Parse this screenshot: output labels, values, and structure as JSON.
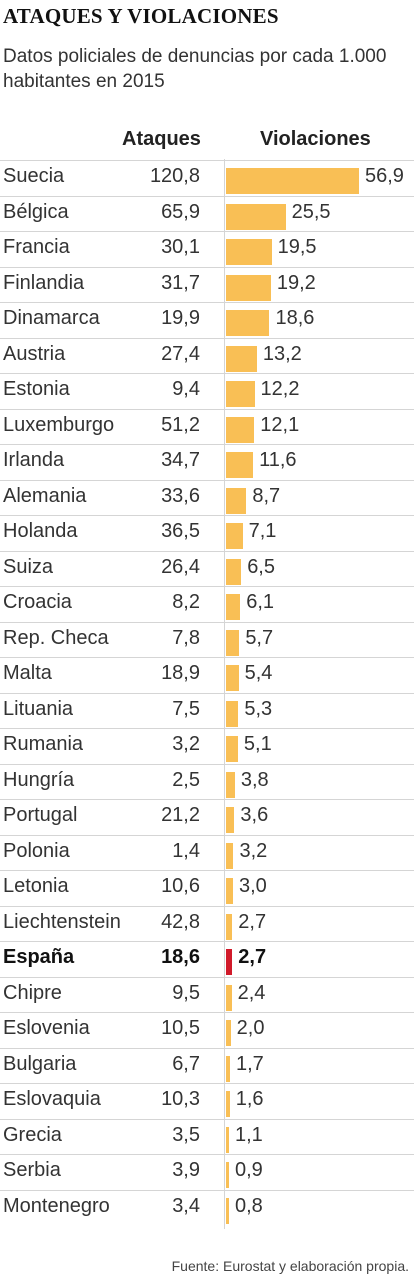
{
  "title": "ATAQUES Y VIOLACIONES",
  "subtitle": "Datos policiales de denuncias por cada 1.000 habitantes en 2015",
  "source": "Fuente: Eurostat  y elaboración propia.",
  "colors": {
    "bar": "#f9bf55",
    "highlight_bar": "#d11a2a"
  },
  "chart_data": {
    "type": "bar",
    "title": "ATAQUES Y VIOLACIONES",
    "subtitle": "Datos policiales de denuncias por cada 1.000 habitantes en 2015",
    "orientation": "horizontal",
    "highlight": "España",
    "columns": [
      "Ataques",
      "Violaciones"
    ],
    "rows": [
      {
        "country": "Suecia",
        "ataques": "120,8",
        "violaciones": "56,9",
        "v": 56.9
      },
      {
        "country": "Bélgica",
        "ataques": "65,9",
        "violaciones": "25,5",
        "v": 25.5
      },
      {
        "country": "Francia",
        "ataques": "30,1",
        "violaciones": "19,5",
        "v": 19.5
      },
      {
        "country": "Finlandia",
        "ataques": "31,7",
        "violaciones": "19,2",
        "v": 19.2
      },
      {
        "country": "Dinamarca",
        "ataques": "19,9",
        "violaciones": "18,6",
        "v": 18.6
      },
      {
        "country": "Austria",
        "ataques": "27,4",
        "violaciones": "13,2",
        "v": 13.2
      },
      {
        "country": "Estonia",
        "ataques": "9,4",
        "violaciones": "12,2",
        "v": 12.2
      },
      {
        "country": "Luxemburgo",
        "ataques": "51,2",
        "violaciones": "12,1",
        "v": 12.1
      },
      {
        "country": "Irlanda",
        "ataques": "34,7",
        "violaciones": "11,6",
        "v": 11.6
      },
      {
        "country": "Alemania",
        "ataques": "33,6",
        "violaciones": "8,7",
        "v": 8.7
      },
      {
        "country": "Holanda",
        "ataques": "36,5",
        "violaciones": "7,1",
        "v": 7.1
      },
      {
        "country": "Suiza",
        "ataques": "26,4",
        "violaciones": "6,5",
        "v": 6.5
      },
      {
        "country": "Croacia",
        "ataques": "8,2",
        "violaciones": "6,1",
        "v": 6.1
      },
      {
        "country": "Rep. Checa",
        "ataques": "7,8",
        "violaciones": "5,7",
        "v": 5.7
      },
      {
        "country": "Malta",
        "ataques": "18,9",
        "violaciones": "5,4",
        "v": 5.4
      },
      {
        "country": "Lituania",
        "ataques": "7,5",
        "violaciones": "5,3",
        "v": 5.3
      },
      {
        "country": "Rumania",
        "ataques": "3,2",
        "violaciones": "5,1",
        "v": 5.1
      },
      {
        "country": "Hungría",
        "ataques": "2,5",
        "violaciones": "3,8",
        "v": 3.8
      },
      {
        "country": "Portugal",
        "ataques": "21,2",
        "violaciones": "3,6",
        "v": 3.6
      },
      {
        "country": "Polonia",
        "ataques": "1,4",
        "violaciones": "3,2",
        "v": 3.2
      },
      {
        "country": "Letonia",
        "ataques": "10,6",
        "violaciones": "3,0",
        "v": 3.0
      },
      {
        "country": "Liechtenstein",
        "ataques": "42,8",
        "violaciones": "2,7",
        "v": 2.7
      },
      {
        "country": "España",
        "ataques": "18,6",
        "violaciones": "2,7",
        "v": 2.7
      },
      {
        "country": "Chipre",
        "ataques": "9,5",
        "violaciones": "2,4",
        "v": 2.4
      },
      {
        "country": "Eslovenia",
        "ataques": "10,5",
        "violaciones": "2,0",
        "v": 2.0
      },
      {
        "country": "Bulgaria",
        "ataques": "6,7",
        "violaciones": "1,7",
        "v": 1.7
      },
      {
        "country": "Eslovaquia",
        "ataques": "10,3",
        "violaciones": "1,6",
        "v": 1.6
      },
      {
        "country": "Grecia",
        "ataques": "3,5",
        "violaciones": "1,1",
        "v": 1.1
      },
      {
        "country": "Serbia",
        "ataques": "3,9",
        "violaciones": "0,9",
        "v": 0.9
      },
      {
        "country": "Montenegro",
        "ataques": "3,4",
        "violaciones": "0,8",
        "v": 0.8
      }
    ]
  }
}
